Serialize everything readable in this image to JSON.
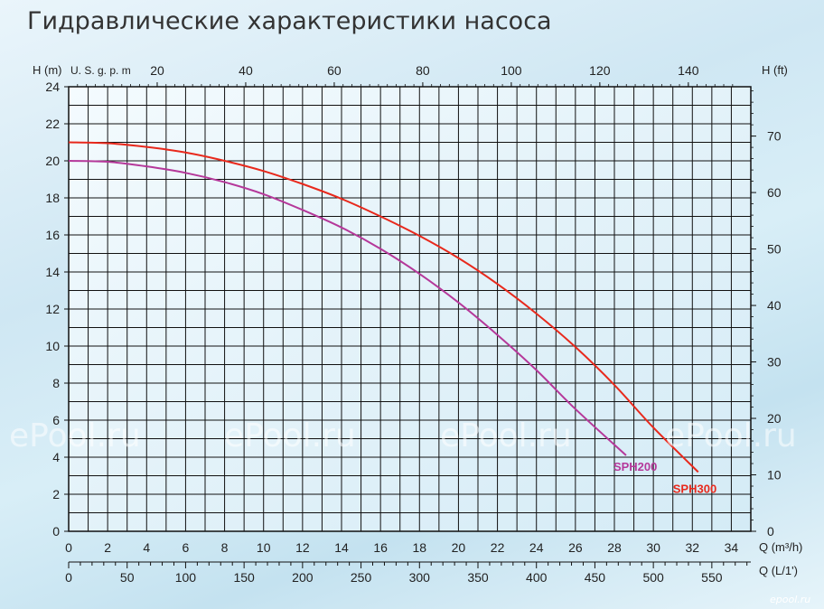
{
  "title": "Гидравлические характеристики насоса",
  "watermark": "ePool.ru",
  "corner_watermark": "epool.ru",
  "colors": {
    "SPH200": "#b5389a",
    "SPH300": "#e8291c",
    "grid": "#111111"
  },
  "chart_data": {
    "type": "line",
    "title": "Гидравлические характеристики насоса",
    "x_primary": {
      "label": "Q (m³/h)",
      "range": [
        0,
        35
      ],
      "ticks": [
        0,
        2,
        4,
        6,
        8,
        10,
        12,
        14,
        16,
        18,
        20,
        22,
        24,
        26,
        28,
        30,
        32,
        34
      ]
    },
    "x_secondary_bottom": {
      "label": "Q (L/1')",
      "ticks": [
        0,
        50,
        100,
        150,
        200,
        250,
        300,
        350,
        400,
        450,
        500,
        550
      ]
    },
    "x_secondary_top": {
      "label": "U. S. g. p. m",
      "ticks": [
        20,
        40,
        60,
        80,
        100,
        120,
        140
      ]
    },
    "y_primary": {
      "label": "H (m)",
      "range": [
        0,
        24
      ],
      "ticks": [
        0,
        2,
        4,
        6,
        8,
        10,
        12,
        14,
        16,
        18,
        20,
        22,
        24
      ]
    },
    "y_secondary": {
      "label": "H (ft)",
      "ticks": [
        0,
        10,
        20,
        30,
        40,
        50,
        60,
        70
      ]
    },
    "grid": true,
    "series": [
      {
        "name": "SPH200",
        "points": [
          [
            0,
            20
          ],
          [
            2,
            19.95
          ],
          [
            4,
            19.7
          ],
          [
            6,
            19.35
          ],
          [
            8,
            18.85
          ],
          [
            10,
            18.2
          ],
          [
            12,
            17.35
          ],
          [
            14,
            16.4
          ],
          [
            16,
            15.25
          ],
          [
            18,
            13.9
          ],
          [
            20,
            12.35
          ],
          [
            22,
            10.6
          ],
          [
            24,
            8.7
          ],
          [
            26,
            6.6
          ],
          [
            28.6,
            4.1
          ]
        ]
      },
      {
        "name": "SPH300",
        "points": [
          [
            0,
            21
          ],
          [
            2,
            20.95
          ],
          [
            4,
            20.75
          ],
          [
            6,
            20.45
          ],
          [
            8,
            20.0
          ],
          [
            10,
            19.45
          ],
          [
            12,
            18.75
          ],
          [
            14,
            17.95
          ],
          [
            16,
            17.0
          ],
          [
            18,
            15.95
          ],
          [
            20,
            14.75
          ],
          [
            22,
            13.35
          ],
          [
            24,
            11.75
          ],
          [
            26,
            9.95
          ],
          [
            28,
            7.9
          ],
          [
            30,
            5.6
          ],
          [
            32.3,
            3.2
          ]
        ]
      }
    ]
  }
}
